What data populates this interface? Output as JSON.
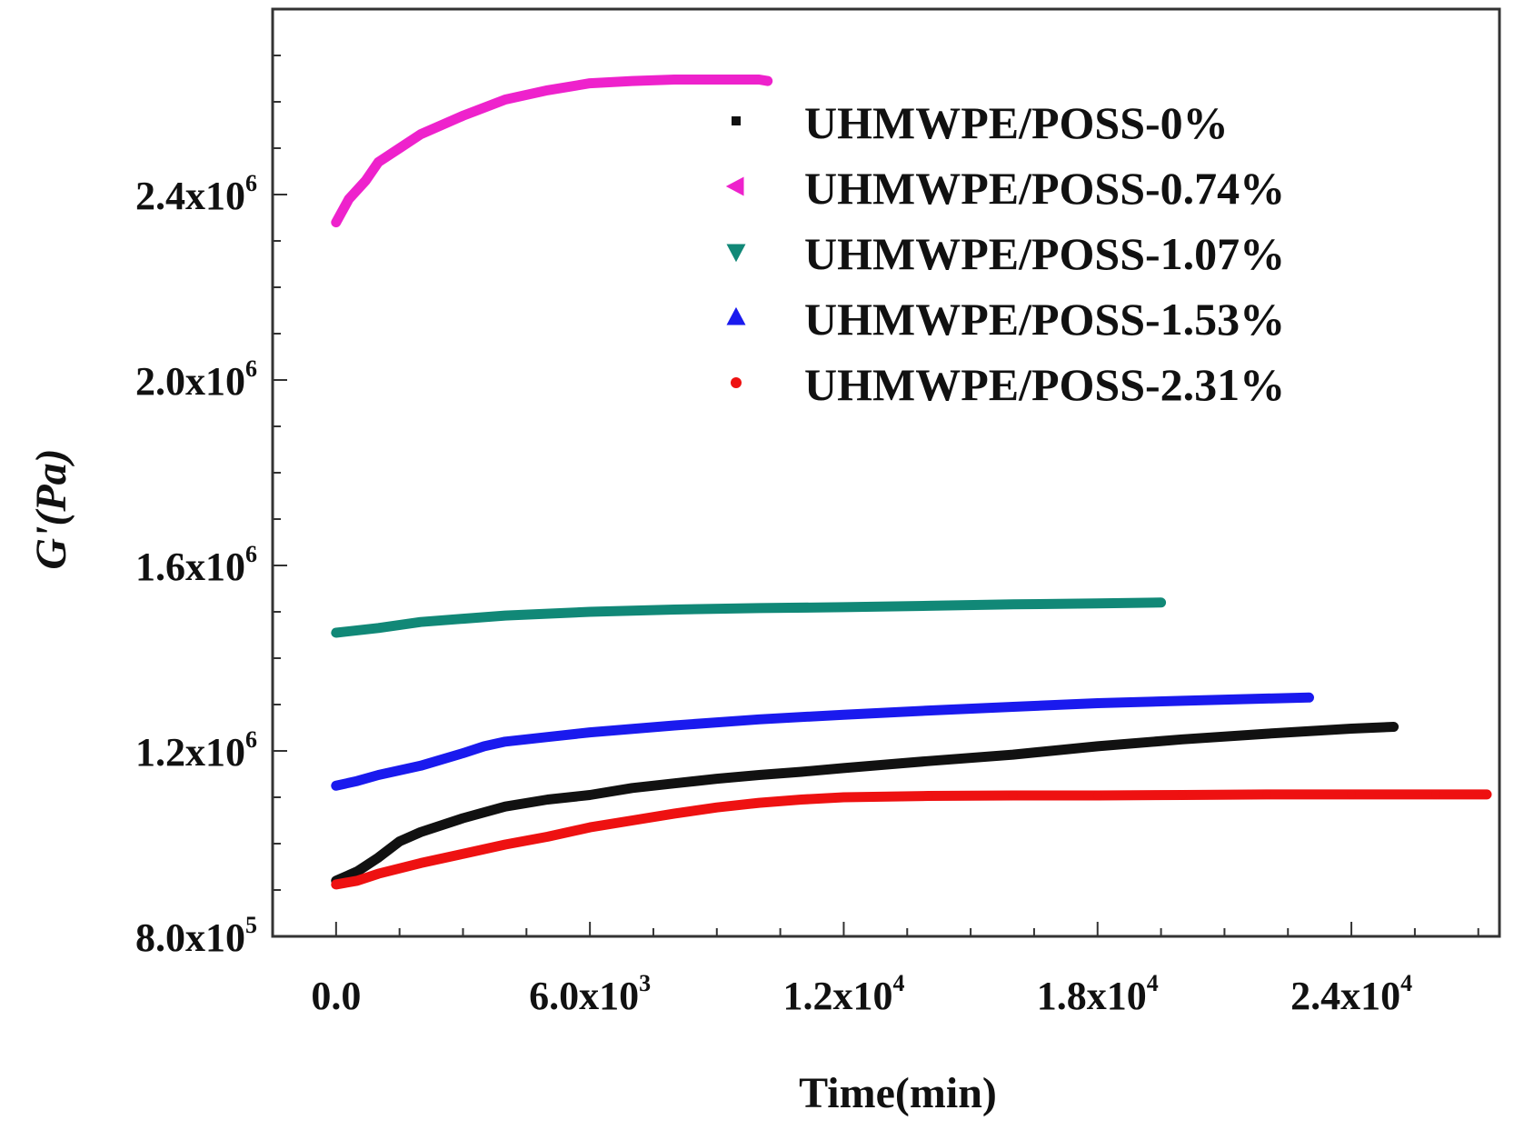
{
  "chart_data": {
    "type": "scatter",
    "title": "",
    "xlabel": "Time(min)",
    "ylabel": "G'(Pa)",
    "xlim": [
      -1500,
      27500
    ],
    "ylim": [
      800000,
      2800000
    ],
    "x_ticks": [
      {
        "value": 0,
        "mantissa": "0.0",
        "exp": ""
      },
      {
        "value": 6000,
        "mantissa": "6.0x10",
        "exp": "3"
      },
      {
        "value": 12000,
        "mantissa": "1.2x10",
        "exp": "4"
      },
      {
        "value": 18000,
        "mantissa": "1.8x10",
        "exp": "4"
      },
      {
        "value": 24000,
        "mantissa": "2.4x10",
        "exp": "4"
      }
    ],
    "y_ticks": [
      {
        "value": 800000,
        "mantissa": "8.0x10",
        "exp": "5"
      },
      {
        "value": 1200000,
        "mantissa": "1.2x10",
        "exp": "6"
      },
      {
        "value": 1600000,
        "mantissa": "1.6x10",
        "exp": "6"
      },
      {
        "value": 2000000,
        "mantissa": "2.0x10",
        "exp": "6"
      },
      {
        "value": 2400000,
        "mantissa": "2.4x10",
        "exp": "6"
      }
    ],
    "legend_position": "top-right",
    "series": [
      {
        "name": "UHMWPE/POSS-0%",
        "color": "#111111",
        "marker": "square",
        "points": [
          [
            0,
            920000
          ],
          [
            500,
            940000
          ],
          [
            1000,
            970000
          ],
          [
            1500,
            1005000
          ],
          [
            2000,
            1025000
          ],
          [
            3000,
            1055000
          ],
          [
            4000,
            1080000
          ],
          [
            5000,
            1095000
          ],
          [
            6000,
            1105000
          ],
          [
            7000,
            1120000
          ],
          [
            8000,
            1130000
          ],
          [
            9000,
            1140000
          ],
          [
            10000,
            1148000
          ],
          [
            11000,
            1155000
          ],
          [
            12000,
            1163000
          ],
          [
            14000,
            1178000
          ],
          [
            16000,
            1192000
          ],
          [
            18000,
            1210000
          ],
          [
            20000,
            1225000
          ],
          [
            22000,
            1237000
          ],
          [
            24000,
            1248000
          ],
          [
            25000,
            1252000
          ]
        ]
      },
      {
        "name": "UHMWPE/POSS-0.74%",
        "color": "#ee22cc",
        "marker": "triangle-left",
        "points": [
          [
            0,
            2340000
          ],
          [
            300,
            2390000
          ],
          [
            700,
            2430000
          ],
          [
            1000,
            2470000
          ],
          [
            1500,
            2500000
          ],
          [
            2000,
            2530000
          ],
          [
            3000,
            2570000
          ],
          [
            4000,
            2605000
          ],
          [
            5000,
            2625000
          ],
          [
            6000,
            2640000
          ],
          [
            7000,
            2645000
          ],
          [
            8000,
            2648000
          ],
          [
            9000,
            2648000
          ],
          [
            10000,
            2648000
          ],
          [
            10200,
            2645000
          ]
        ]
      },
      {
        "name": "UHMWPE/POSS-1.07%",
        "color": "#118877",
        "marker": "triangle-down",
        "points": [
          [
            0,
            1455000
          ],
          [
            1000,
            1465000
          ],
          [
            2000,
            1478000
          ],
          [
            3000,
            1485000
          ],
          [
            4000,
            1492000
          ],
          [
            6000,
            1500000
          ],
          [
            8000,
            1505000
          ],
          [
            10000,
            1508000
          ],
          [
            12000,
            1510000
          ],
          [
            14000,
            1513000
          ],
          [
            16000,
            1516000
          ],
          [
            18000,
            1518000
          ],
          [
            19500,
            1520000
          ]
        ]
      },
      {
        "name": "UHMWPE/POSS-1.53%",
        "color": "#1a1aee",
        "marker": "triangle-up",
        "points": [
          [
            0,
            1125000
          ],
          [
            500,
            1135000
          ],
          [
            1000,
            1148000
          ],
          [
            2000,
            1168000
          ],
          [
            3000,
            1195000
          ],
          [
            3500,
            1210000
          ],
          [
            4000,
            1220000
          ],
          [
            5000,
            1230000
          ],
          [
            6000,
            1240000
          ],
          [
            8000,
            1255000
          ],
          [
            10000,
            1268000
          ],
          [
            12000,
            1278000
          ],
          [
            14000,
            1287000
          ],
          [
            16000,
            1295000
          ],
          [
            18000,
            1303000
          ],
          [
            20000,
            1308000
          ],
          [
            22000,
            1313000
          ],
          [
            23000,
            1315000
          ]
        ]
      },
      {
        "name": "UHMWPE/POSS-2.31%",
        "color": "#ee1111",
        "marker": "circle",
        "points": [
          [
            0,
            912000
          ],
          [
            500,
            920000
          ],
          [
            1000,
            935000
          ],
          [
            2000,
            958000
          ],
          [
            3000,
            978000
          ],
          [
            4000,
            998000
          ],
          [
            5000,
            1015000
          ],
          [
            6000,
            1035000
          ],
          [
            7000,
            1050000
          ],
          [
            8000,
            1065000
          ],
          [
            9000,
            1078000
          ],
          [
            10000,
            1088000
          ],
          [
            11000,
            1095000
          ],
          [
            12000,
            1100000
          ],
          [
            14000,
            1103000
          ],
          [
            16000,
            1104000
          ],
          [
            18000,
            1104000
          ],
          [
            20000,
            1105000
          ],
          [
            22000,
            1106000
          ],
          [
            24000,
            1106000
          ],
          [
            26000,
            1106000
          ],
          [
            27200,
            1106000
          ]
        ]
      }
    ]
  }
}
